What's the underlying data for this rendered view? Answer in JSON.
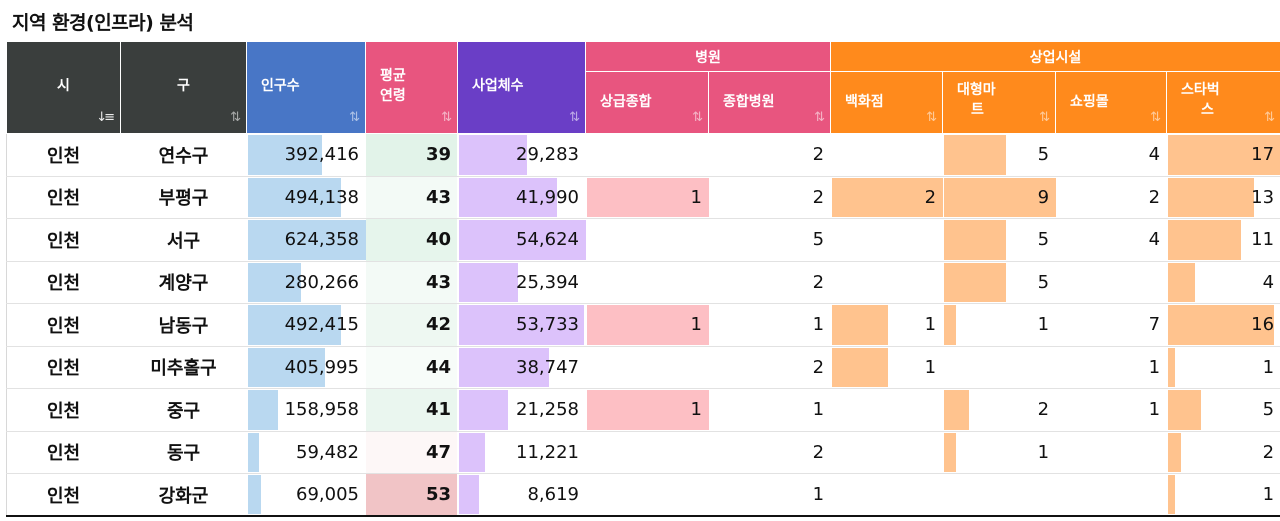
{
  "title": "지역 환경(인프라) 분석",
  "headers": {
    "city": "시",
    "gu": "구",
    "population": "인구수",
    "avg_age_line1": "평균",
    "avg_age_line2": "연령",
    "businesses": "사업체수",
    "hospital_group": "병원",
    "upper_hospital": "상급종합",
    "general_hospital": "종합병원",
    "commercial_group": "상업시설",
    "department_store": "백화점",
    "mart_line1": "대형마",
    "mart_line2": "트",
    "mall": "쇼핑몰",
    "starbucks_line1": "스타벅",
    "starbucks_line2": "스",
    "sort_icon": "⇅",
    "sort_active_icon": "↓≡"
  },
  "colors": {
    "header_dark": "#3a3e3d",
    "header_blue": "#4876c6",
    "header_pink": "#e8557f",
    "header_purple": "#6a3ec6",
    "header_orange": "#ff8a1c",
    "bar_population": "#b9d8f0",
    "bar_business": "#dcc2fb",
    "bar_hospital": "#fdbfc4",
    "bar_commercial": "#ffc38e"
  },
  "rows": [
    {
      "city": "인천",
      "gu": "연수구",
      "population": "392,416",
      "pop": 392416,
      "age": "39",
      "businesses": "29,283",
      "biz": 29283,
      "upper": "",
      "upper_n": 0,
      "general": "2",
      "dept": "",
      "dept_n": 0,
      "mart": "5",
      "mart_n": 5,
      "mall": "4",
      "mall_n": 4,
      "starbucks": "17",
      "sb_n": 17
    },
    {
      "city": "인천",
      "gu": "부평구",
      "population": "494,138",
      "pop": 494138,
      "age": "43",
      "businesses": "41,990",
      "biz": 41990,
      "upper": "1",
      "upper_n": 1,
      "general": "2",
      "dept": "2",
      "dept_n": 2,
      "mart": "9",
      "mart_n": 9,
      "mall": "2",
      "mall_n": 2,
      "starbucks": "13",
      "sb_n": 13
    },
    {
      "city": "인천",
      "gu": "서구",
      "population": "624,358",
      "pop": 624358,
      "age": "40",
      "businesses": "54,624",
      "biz": 54624,
      "upper": "",
      "upper_n": 0,
      "general": "5",
      "dept": "",
      "dept_n": 0,
      "mart": "5",
      "mart_n": 5,
      "mall": "4",
      "mall_n": 4,
      "starbucks": "11",
      "sb_n": 11
    },
    {
      "city": "인천",
      "gu": "계양구",
      "population": "280,266",
      "pop": 280266,
      "age": "43",
      "businesses": "25,394",
      "biz": 25394,
      "upper": "",
      "upper_n": 0,
      "general": "2",
      "dept": "",
      "dept_n": 0,
      "mart": "5",
      "mart_n": 5,
      "mall": "",
      "mall_n": 0,
      "starbucks": "4",
      "sb_n": 4
    },
    {
      "city": "인천",
      "gu": "남동구",
      "population": "492,415",
      "pop": 492415,
      "age": "42",
      "businesses": "53,733",
      "biz": 53733,
      "upper": "1",
      "upper_n": 1,
      "general": "1",
      "dept": "1",
      "dept_n": 1,
      "mart": "1",
      "mart_n": 1,
      "mall": "7",
      "mall_n": 7,
      "starbucks": "16",
      "sb_n": 16
    },
    {
      "city": "인천",
      "gu": "미추홀구",
      "population": "405,995",
      "pop": 405995,
      "age": "44",
      "businesses": "38,747",
      "biz": 38747,
      "upper": "",
      "upper_n": 0,
      "general": "2",
      "dept": "1",
      "dept_n": 1,
      "mart": "",
      "mart_n": 0,
      "mall": "1",
      "mall_n": 1,
      "starbucks": "1",
      "sb_n": 1
    },
    {
      "city": "인천",
      "gu": "중구",
      "population": "158,958",
      "pop": 158958,
      "age": "41",
      "businesses": "21,258",
      "biz": 21258,
      "upper": "1",
      "upper_n": 1,
      "general": "1",
      "dept": "",
      "dept_n": 0,
      "mart": "2",
      "mart_n": 2,
      "mall": "1",
      "mall_n": 1,
      "starbucks": "5",
      "sb_n": 5
    },
    {
      "city": "인천",
      "gu": "동구",
      "population": "59,482",
      "pop": 59482,
      "age": "47",
      "businesses": "11,221",
      "biz": 11221,
      "upper": "",
      "upper_n": 0,
      "general": "2",
      "dept": "",
      "dept_n": 0,
      "mart": "1",
      "mart_n": 1,
      "mall": "",
      "mall_n": 0,
      "starbucks": "2",
      "sb_n": 2
    },
    {
      "city": "인천",
      "gu": "강화군",
      "population": "69,005",
      "pop": 69005,
      "age": "53",
      "businesses": "8,619",
      "biz": 8619,
      "upper": "",
      "upper_n": 0,
      "general": "1",
      "dept": "",
      "dept_n": 0,
      "mart": "",
      "mart_n": 0,
      "mall": "",
      "mall_n": 0,
      "starbucks": "1",
      "sb_n": 1
    }
  ]
}
